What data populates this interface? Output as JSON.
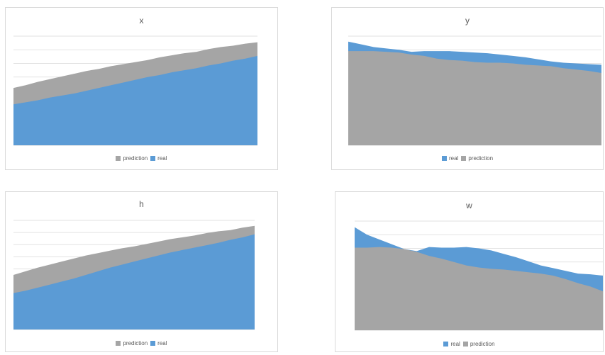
{
  "colors": {
    "real": "#5b9bd5",
    "prediction": "#a5a5a5",
    "grid": "#d9d9d9"
  },
  "chart_data": [
    {
      "id": "x",
      "type": "area",
      "title": "x",
      "ylim": [
        0,
        8
      ],
      "grid": true,
      "legend_position": "bottom",
      "legend_order": [
        "prediction",
        "real"
      ],
      "draw_order": [
        "prediction",
        "real"
      ],
      "x": [
        0,
        1,
        2,
        3,
        4,
        5,
        6,
        7,
        8,
        9,
        10,
        11,
        12,
        13,
        14,
        15,
        16,
        17,
        18,
        19,
        20
      ],
      "series": [
        {
          "name": "prediction",
          "values": [
            4.2,
            4.4,
            4.65,
            4.85,
            5.05,
            5.25,
            5.45,
            5.6,
            5.8,
            5.95,
            6.1,
            6.25,
            6.45,
            6.6,
            6.75,
            6.85,
            7.05,
            7.2,
            7.3,
            7.45,
            7.55
          ]
        },
        {
          "name": "real",
          "values": [
            3.0,
            3.15,
            3.3,
            3.5,
            3.65,
            3.8,
            4.0,
            4.2,
            4.4,
            4.6,
            4.8,
            5.0,
            5.15,
            5.35,
            5.5,
            5.65,
            5.85,
            6.0,
            6.2,
            6.35,
            6.55
          ]
        }
      ]
    },
    {
      "id": "y",
      "type": "area",
      "title": "y",
      "ylim": [
        0,
        8
      ],
      "grid": true,
      "legend_position": "bottom",
      "legend_order": [
        "real",
        "prediction"
      ],
      "draw_order": [
        "real",
        "prediction"
      ],
      "x": [
        0,
        1,
        2,
        3,
        4,
        5,
        6,
        7,
        8,
        9,
        10,
        11,
        12,
        13,
        14,
        15,
        16,
        17,
        18,
        19,
        20
      ],
      "series": [
        {
          "name": "real",
          "values": [
            7.6,
            7.4,
            7.2,
            7.1,
            7.0,
            6.85,
            6.9,
            6.9,
            6.9,
            6.85,
            6.8,
            6.75,
            6.65,
            6.55,
            6.45,
            6.3,
            6.15,
            6.05,
            6.0,
            5.95,
            5.9
          ]
        },
        {
          "name": "prediction",
          "values": [
            6.9,
            6.9,
            6.9,
            6.85,
            6.8,
            6.65,
            6.55,
            6.35,
            6.25,
            6.2,
            6.1,
            6.05,
            6.05,
            6.0,
            5.9,
            5.85,
            5.8,
            5.65,
            5.55,
            5.45,
            5.3
          ]
        }
      ]
    },
    {
      "id": "h",
      "type": "area",
      "title": "h",
      "ylim": [
        0,
        9
      ],
      "grid": true,
      "legend_position": "bottom",
      "legend_order": [
        "prediction",
        "real"
      ],
      "draw_order": [
        "prediction",
        "real"
      ],
      "x": [
        0,
        1,
        2,
        3,
        4,
        5,
        6,
        7,
        8,
        9,
        10,
        11,
        12,
        13,
        14,
        15,
        16,
        17,
        18,
        19,
        20
      ],
      "series": [
        {
          "name": "prediction",
          "values": [
            4.5,
            4.8,
            5.1,
            5.35,
            5.6,
            5.85,
            6.1,
            6.3,
            6.5,
            6.7,
            6.85,
            7.05,
            7.25,
            7.45,
            7.6,
            7.75,
            7.95,
            8.1,
            8.2,
            8.4,
            8.55
          ]
        },
        {
          "name": "real",
          "values": [
            3.0,
            3.2,
            3.45,
            3.7,
            3.95,
            4.2,
            4.5,
            4.8,
            5.1,
            5.35,
            5.6,
            5.85,
            6.1,
            6.35,
            6.55,
            6.75,
            6.95,
            7.15,
            7.4,
            7.6,
            7.85
          ]
        }
      ]
    },
    {
      "id": "w",
      "type": "area",
      "title": "w",
      "ylim": [
        0,
        8
      ],
      "grid": true,
      "legend_position": "bottom",
      "legend_order": [
        "real",
        "prediction"
      ],
      "draw_order": [
        "real",
        "prediction"
      ],
      "x": [
        0,
        1,
        2,
        3,
        4,
        5,
        6,
        7,
        8,
        9,
        10,
        11,
        12,
        13,
        14,
        15,
        16,
        17,
        18,
        19,
        20
      ],
      "series": [
        {
          "name": "real",
          "values": [
            7.55,
            7.0,
            6.65,
            6.3,
            5.95,
            5.8,
            6.1,
            6.05,
            6.05,
            6.1,
            6.0,
            5.85,
            5.6,
            5.35,
            5.05,
            4.75,
            4.55,
            4.35,
            4.15,
            4.1,
            4.0
          ]
        },
        {
          "name": "prediction",
          "values": [
            6.05,
            6.05,
            6.1,
            6.05,
            5.95,
            5.75,
            5.45,
            5.25,
            5.0,
            4.75,
            4.6,
            4.5,
            4.45,
            4.35,
            4.25,
            4.15,
            4.0,
            3.75,
            3.45,
            3.2,
            2.85
          ]
        }
      ]
    }
  ]
}
